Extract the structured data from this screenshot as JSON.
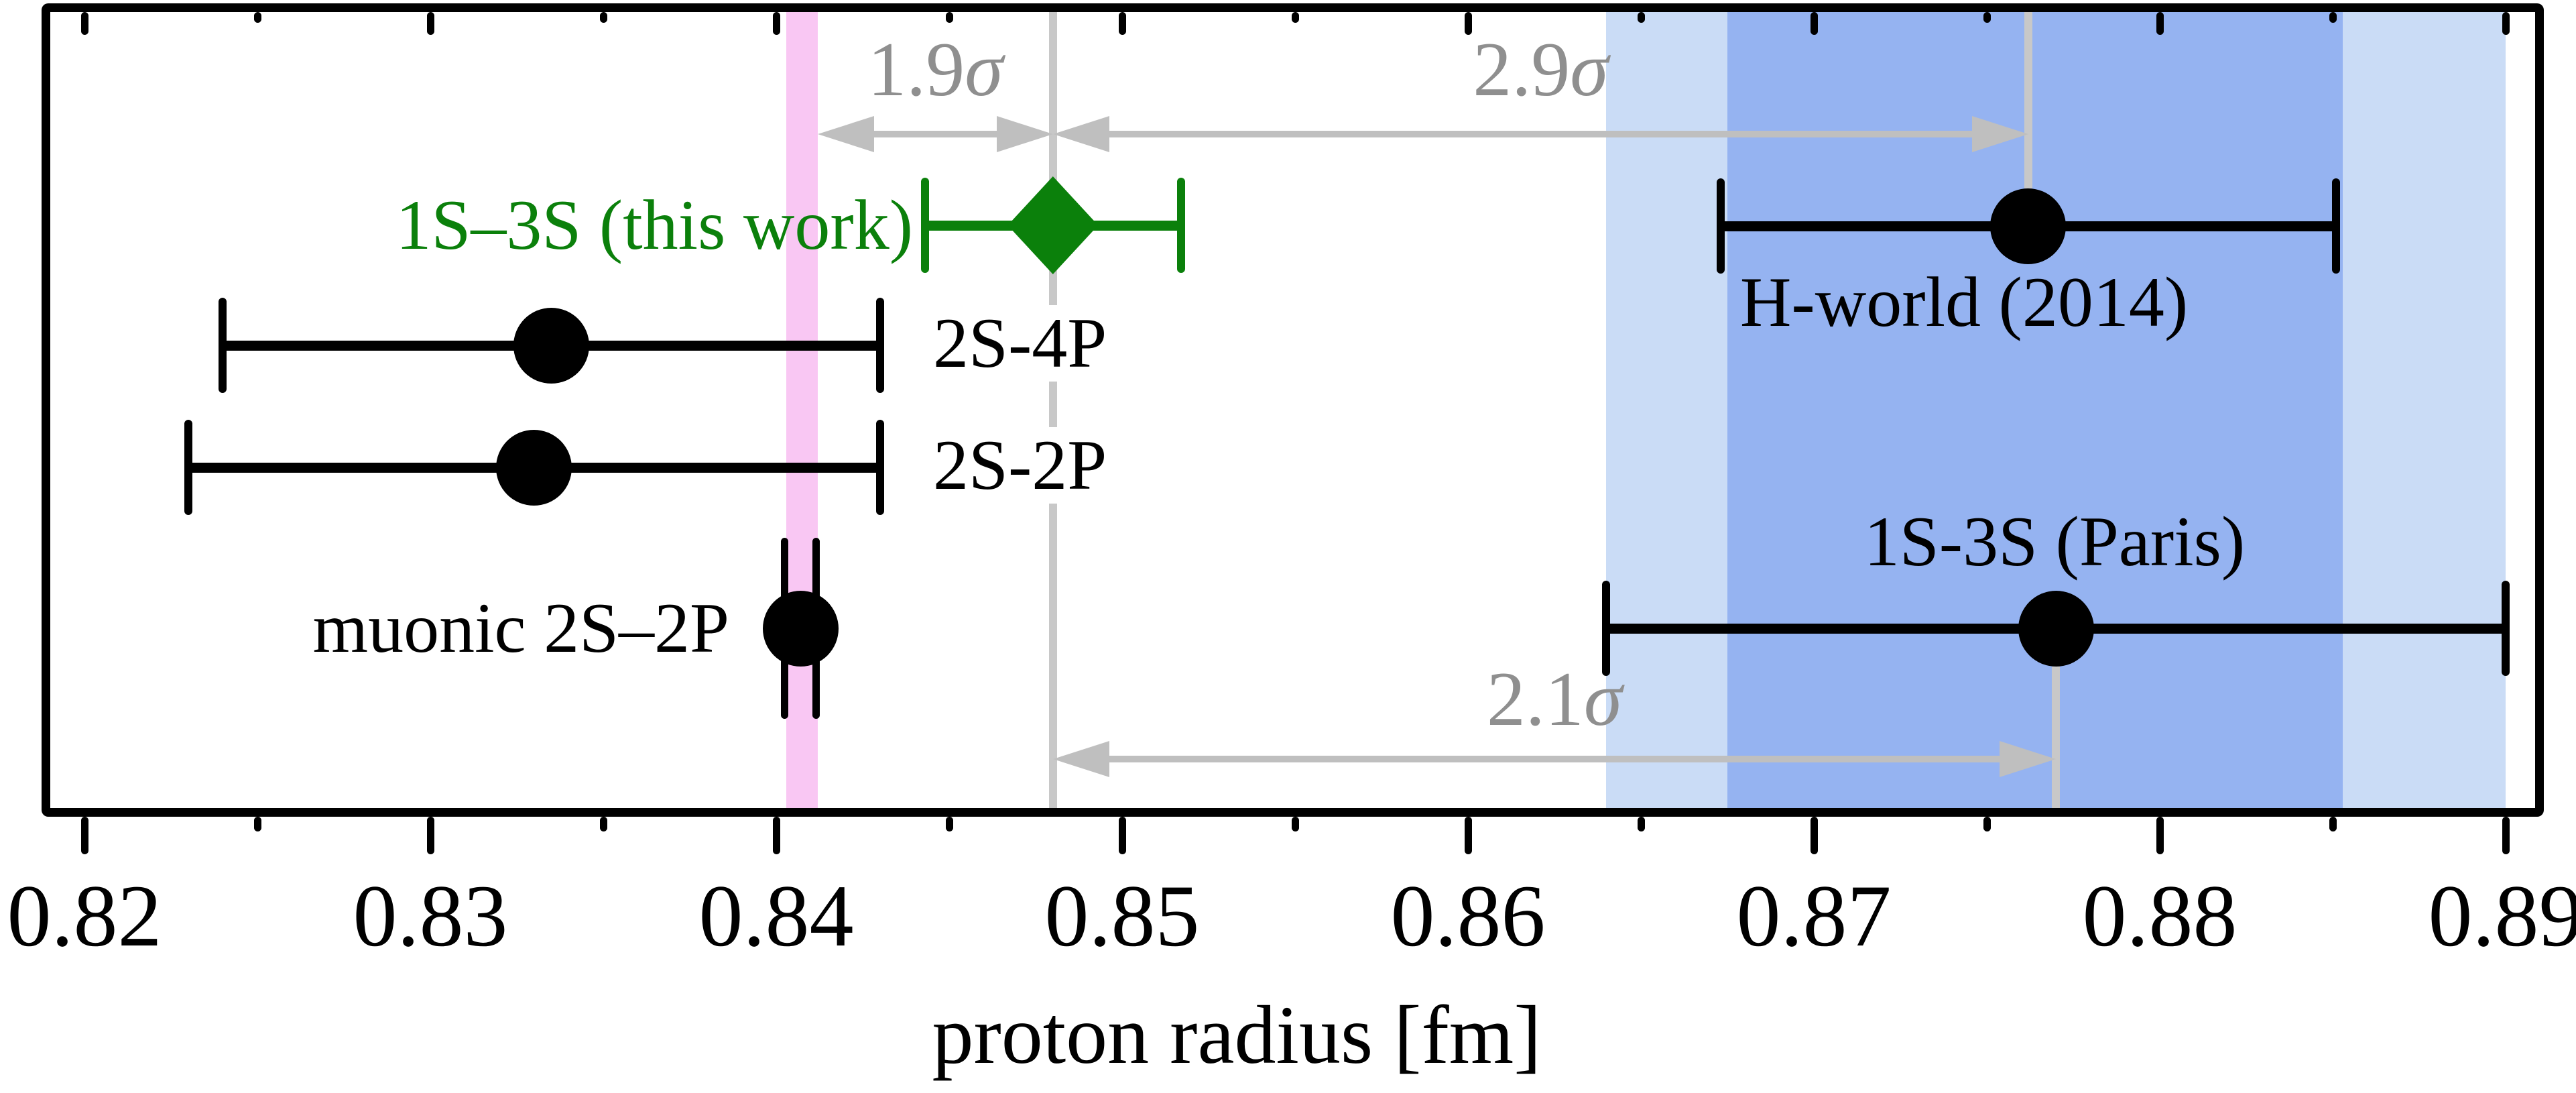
{
  "chart_data": {
    "type": "errorbar",
    "title": "",
    "xlabel": "proton radius [fm]",
    "x_axis": {
      "min": 0.8188,
      "max": 0.8903,
      "major_ticks": [
        {
          "value": 0.82,
          "label": "0.82"
        },
        {
          "value": 0.83,
          "label": "0.83"
        },
        {
          "value": 0.84,
          "label": "0.84"
        },
        {
          "value": 0.85,
          "label": "0.85"
        },
        {
          "value": 0.86,
          "label": "0.86"
        },
        {
          "value": 0.87,
          "label": "0.87"
        },
        {
          "value": 0.88,
          "label": "0.88"
        },
        {
          "value": 0.89,
          "label": "0.89"
        }
      ],
      "minor_ticks": [
        0.825,
        0.835,
        0.845,
        0.855,
        0.865,
        0.875,
        0.885
      ],
      "grid": false
    },
    "bands": [
      {
        "id": "muonic-band",
        "name": "muonic 1-sigma band",
        "from": 0.8403,
        "to": 0.8412,
        "color": "#f9c7f3"
      },
      {
        "id": "paris-band",
        "name": "1S-3S Paris 1-sigma band",
        "from": 0.864,
        "to": 0.89,
        "color": "#cadcf6"
      },
      {
        "id": "hworld-band",
        "name": "H-world 1-sigma band",
        "from": 0.8675,
        "to": 0.8853,
        "color": "#95b3f1"
      }
    ],
    "points": [
      {
        "id": "this_work",
        "label": "1S–3S (this work)",
        "value": 0.848,
        "error": 0.0037,
        "marker": "diamond",
        "color": "#0b800b"
      },
      {
        "id": "s24p",
        "label": "2S-4P",
        "value": 0.8335,
        "error": 0.0095,
        "marker": "circle",
        "color": "#000000"
      },
      {
        "id": "s22p",
        "label": "2S-2P",
        "value": 0.833,
        "error": 0.01,
        "marker": "circle",
        "color": "#000000"
      },
      {
        "id": "muonic",
        "label": "muonic 2S–2P",
        "value": 0.8407,
        "error": 0.00045,
        "marker": "circle",
        "color": "#000000"
      },
      {
        "id": "hworld",
        "label": "H-world (2014)",
        "value": 0.8762,
        "error": 0.0089,
        "marker": "circle",
        "color": "#000000"
      },
      {
        "id": "paris",
        "label": "1S-3S (Paris)",
        "value": 0.877,
        "error": 0.013,
        "marker": "circle",
        "color": "#000000"
      }
    ],
    "sigma_arrows": [
      {
        "id": "sigma-19",
        "num": "1.9",
        "sym": "σ",
        "from": 0.8412,
        "to": 0.848,
        "row": "top"
      },
      {
        "id": "sigma-29",
        "num": "2.9",
        "sym": "σ",
        "from": 0.848,
        "to": 0.8762,
        "row": "top"
      },
      {
        "id": "sigma-21",
        "num": "2.1",
        "sym": "σ",
        "from": 0.848,
        "to": 0.877,
        "row": "bottom"
      }
    ],
    "guide_lines": [
      {
        "id": "guide-thiswork",
        "value": 0.848,
        "span": "full"
      },
      {
        "id": "guide-hworld",
        "value": 0.8762,
        "span": "top"
      },
      {
        "id": "guide-paris",
        "value": 0.877,
        "span": "bottom"
      }
    ],
    "colors": {
      "arrow_gray": "#bfbfbf",
      "guide_gray": "#c8c8c8",
      "sigma_text_gray": "#8f8f8f",
      "accent_green": "#0b800b",
      "band_magenta": "#f9c7f3",
      "band_light_blue": "#cadcf6",
      "band_dark_blue": "#95b3f1"
    }
  }
}
